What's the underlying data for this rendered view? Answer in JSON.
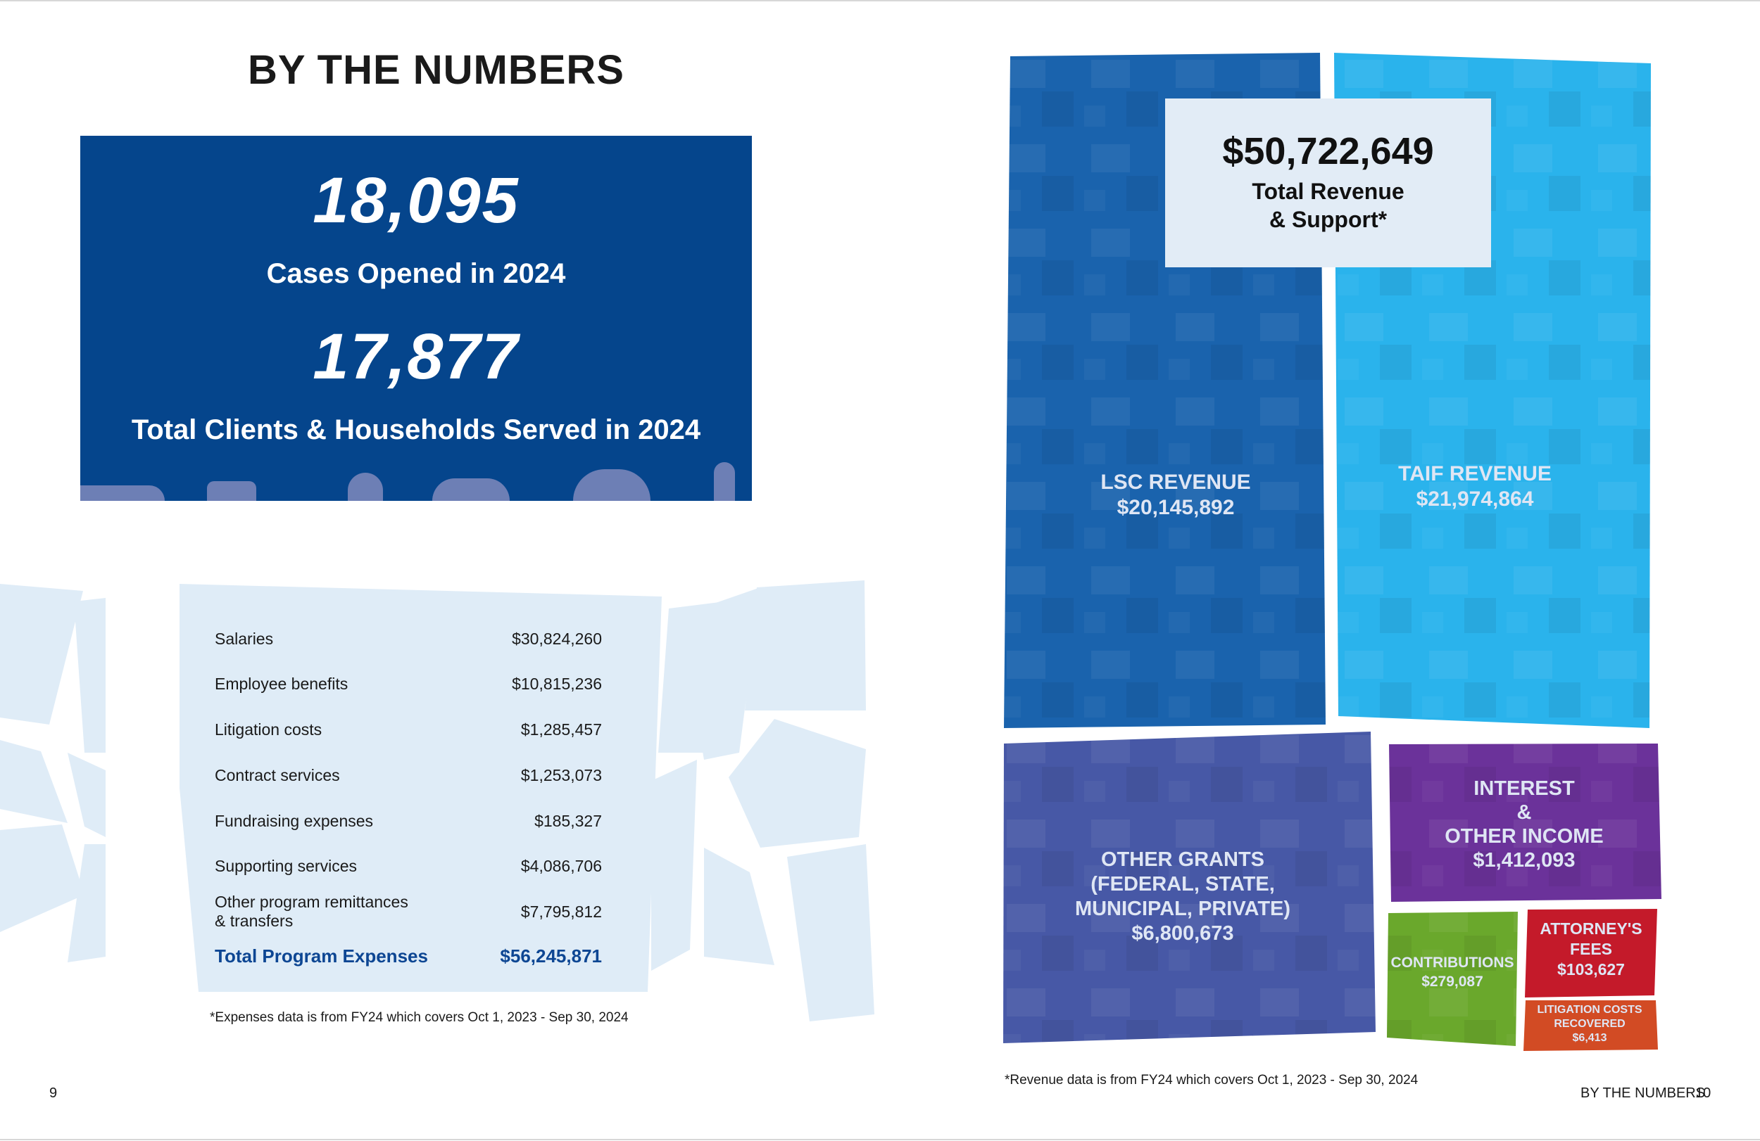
{
  "left_page": {
    "title": "BY THE NUMBERS",
    "stats": [
      {
        "number": "18,095",
        "label": "Cases Opened in 2024"
      },
      {
        "number": "17,877",
        "label": "Total Clients & Households Served in 2024"
      }
    ],
    "expenses": {
      "rows": [
        {
          "label": "Salaries",
          "value": "$30,824,260"
        },
        {
          "label": "Employee benefits",
          "value": "$10,815,236"
        },
        {
          "label": "Litigation costs",
          "value": "$1,285,457"
        },
        {
          "label": "Contract services",
          "value": "$1,253,073"
        },
        {
          "label": "Fundraising expenses",
          "value": "$185,327"
        },
        {
          "label": "Supporting services",
          "value": "$4,086,706"
        },
        {
          "label": "Other program remittances",
          "label2": "& transfers",
          "value": "$7,795,812"
        }
      ],
      "total_label": "Total Program Expenses",
      "total_value": "$56,245,871",
      "footnote": "*Expenses data is from FY24 which covers Oct 1, 2023 - Sep 30, 2024"
    },
    "page_number": "9"
  },
  "right_page": {
    "total_amount": "$50,722,649",
    "total_label_line1": "Total Revenue",
    "total_label_line2": "& Support*",
    "footnote": "*Revenue data is from FY24 which covers Oct 1, 2023 - Sep 30, 2024",
    "footer_label": "BY THE NUMBERS",
    "page_number": "10",
    "colors": {
      "lsc": "#1a63ad",
      "taif": "#2ab3ec",
      "other_grants": "#4758a6",
      "interest": "#6b329a",
      "contributions": "#6aa82c",
      "attorney": "#c41a2a",
      "litigation": "#d24b24"
    },
    "tiles": {
      "lsc": {
        "line1": "LSC REVENUE",
        "line2": "$20,145,892"
      },
      "taif": {
        "line1": "TAIF REVENUE",
        "line2": "$21,974,864"
      },
      "other_grants": {
        "line1": "OTHER GRANTS",
        "line2": "(FEDERAL, STATE,",
        "line3": "MUNICIPAL, PRIVATE)",
        "line4": "$6,800,673"
      },
      "interest": {
        "line1": "INTEREST",
        "line2": "&",
        "line3": "OTHER INCOME",
        "line4": "$1,412,093"
      },
      "contributions": {
        "line1": "CONTRIBUTIONS",
        "line2": "$279,087"
      },
      "attorney": {
        "line1": "ATTORNEY'S",
        "line2": "FEES",
        "line3": "$103,627"
      },
      "litigation": {
        "line1": "LITIGATION COSTS",
        "line2": "RECOVERED",
        "line3": "$6,413"
      }
    }
  },
  "chart_data": {
    "type": "treemap",
    "title": "Total Revenue & Support*",
    "total": 50722649,
    "categories": [
      "LSC REVENUE",
      "TAIF REVENUE",
      "OTHER GRANTS (FEDERAL, STATE, MUNICIPAL, PRIVATE)",
      "INTEREST & OTHER INCOME",
      "CONTRIBUTIONS",
      "ATTORNEY'S FEES",
      "LITIGATION COSTS RECOVERED"
    ],
    "values": [
      20145892,
      21974864,
      6800673,
      1412093,
      279087,
      103627,
      6413
    ]
  }
}
